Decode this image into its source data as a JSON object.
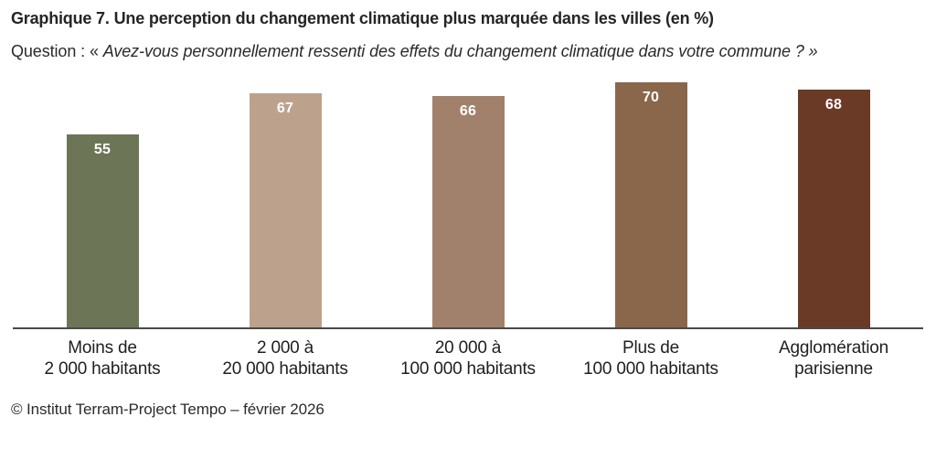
{
  "header": {
    "title_prefix": "Graphique 7.",
    "title_rest": "Une perception du changement climatique plus marquée dans les villes (en %)",
    "question_label": "Question : « ",
    "question_quote": "Avez-vous personnellement ressenti des effets du changement climatique dans votre commune ? »"
  },
  "chart_data": {
    "type": "bar",
    "title": "Une perception du changement climatique plus marquée dans les villes (en %)",
    "unit": "%",
    "categories": [
      "Moins de 2 000 habitants",
      "2 000 à 20 000 habitants",
      "20 000 à 100 000 habitants",
      "Plus de 100 000 habitants",
      "Agglomération parisienne"
    ],
    "category_lines": [
      [
        "Moins de",
        "2 000 habitants"
      ],
      [
        "2 000 à",
        "20 000 habitants"
      ],
      [
        "20 000 à",
        "100 000 habitants"
      ],
      [
        "Plus de",
        "100 000 habitants"
      ],
      [
        "Agglomération",
        "parisienne"
      ]
    ],
    "values": [
      55,
      67,
      66,
      70,
      68
    ],
    "bar_colors": [
      "#6D7557",
      "#BCA28C",
      "#A1816B",
      "#8A664B",
      "#6B3A26"
    ],
    "value_label_color": "#FFFFFF",
    "baseline_color": "#4A4A4A",
    "ylim": [
      0,
      70
    ],
    "grid": false,
    "legend": false,
    "value_labels_position": "inside-top"
  },
  "footer": {
    "source": "© Institut Terram-Project Tempo – février 2026"
  }
}
